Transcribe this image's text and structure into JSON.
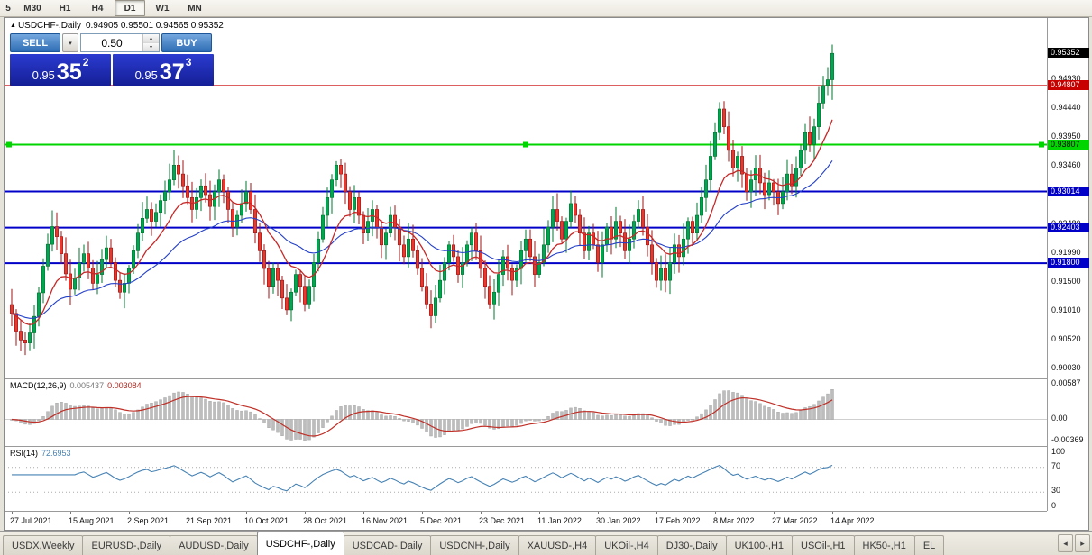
{
  "toolbar": {
    "timeframes": [
      {
        "label": "5"
      },
      {
        "label": "M30"
      },
      {
        "label": "H1"
      },
      {
        "label": "H4"
      },
      {
        "label": "D1",
        "active": true
      },
      {
        "label": "W1"
      },
      {
        "label": "MN"
      }
    ]
  },
  "trade_panel": {
    "sell_label": "SELL",
    "buy_label": "BUY",
    "volume": "0.50",
    "dropdown_icon": "▾",
    "spin_up_icon": "▴",
    "spin_down_icon": "▾",
    "sell_price": {
      "prefix": "0.95",
      "big": "35",
      "sup": "2"
    },
    "buy_price": {
      "prefix": "0.95",
      "big": "37",
      "sup": "3"
    }
  },
  "chart_data": {
    "type": "candlestick",
    "title": "USDCHF-,Daily",
    "title_ohlc": "0.94905 0.95501 0.94565 0.95352",
    "marker": "▲",
    "last_ohlc": {
      "open": 0.94905,
      "high": 0.95501,
      "low": 0.94565,
      "close": 0.95352
    },
    "first_open": 0.911,
    "price_range": [
      0.8985,
      0.9595
    ],
    "closes": [
      0.9095,
      0.9065,
      0.905,
      0.9045,
      0.9062,
      0.909,
      0.913,
      0.9175,
      0.9212,
      0.9242,
      0.9225,
      0.9196,
      0.9162,
      0.9136,
      0.9155,
      0.918,
      0.9196,
      0.9172,
      0.9146,
      0.9161,
      0.9186,
      0.9206,
      0.9181,
      0.9151,
      0.9131,
      0.9146,
      0.9171,
      0.9201,
      0.9231,
      0.9256,
      0.9271,
      0.9251,
      0.9266,
      0.9286,
      0.9301,
      0.9321,
      0.9346,
      0.9331,
      0.9311,
      0.9291,
      0.9271,
      0.9291,
      0.9311,
      0.9296,
      0.9276,
      0.9301,
      0.9321,
      0.9301,
      0.9271,
      0.9241,
      0.9261,
      0.9281,
      0.9301,
      0.9271,
      0.9231,
      0.9201,
      0.9171,
      0.9141,
      0.9171,
      0.9151,
      0.9121,
      0.9101,
      0.9131,
      0.9161,
      0.9141,
      0.9111,
      0.9141,
      0.9181,
      0.9221,
      0.9261,
      0.9291,
      0.9321,
      0.9346,
      0.9331,
      0.9301,
      0.9271,
      0.9291,
      0.9261,
      0.9231,
      0.9251,
      0.9271,
      0.9241,
      0.9211,
      0.9231,
      0.9261,
      0.9241,
      0.9211,
      0.9191,
      0.9221,
      0.9201,
      0.9171,
      0.9141,
      0.9111,
      0.9091,
      0.9121,
      0.9151,
      0.9181,
      0.9211,
      0.9191,
      0.9161,
      0.9181,
      0.9211,
      0.9231,
      0.9201,
      0.9171,
      0.9141,
      0.9111,
      0.9131,
      0.9161,
      0.9191,
      0.9171,
      0.9151,
      0.9171,
      0.9201,
      0.9221,
      0.9191,
      0.9161,
      0.9181,
      0.9211,
      0.9241,
      0.9271,
      0.9251,
      0.9221,
      0.9251,
      0.9281,
      0.9261,
      0.9231,
      0.9201,
      0.9231,
      0.9211,
      0.9181,
      0.9211,
      0.9241,
      0.9221,
      0.9251,
      0.9231,
      0.9201,
      0.9221,
      0.9251,
      0.9271,
      0.9241,
      0.9211,
      0.9181,
      0.9151,
      0.9171,
      0.9151,
      0.9181,
      0.9211,
      0.9191,
      0.9221,
      0.9251,
      0.9231,
      0.9261,
      0.9291,
      0.9321,
      0.9361,
      0.9401,
      0.9441,
      0.9411,
      0.9371,
      0.9341,
      0.9361,
      0.9331,
      0.9301,
      0.9321,
      0.9341,
      0.9316,
      0.9296,
      0.9316,
      0.9301,
      0.9281,
      0.9301,
      0.9331,
      0.9311,
      0.9341,
      0.9371,
      0.9401,
      0.9381,
      0.9411,
      0.9451,
      0.9481,
      0.94905,
      0.95352
    ],
    "x_labels": [
      "27 Jul 2021",
      "15 Aug 2021",
      "2 Sep 2021",
      "21 Sep 2021",
      "10 Oct 2021",
      "28 Oct 2021",
      "16 Nov 2021",
      "5 Dec 2021",
      "23 Dec 2021",
      "11 Jan 2022",
      "30 Jan 2022",
      "17 Feb 2022",
      "8 Mar 2022",
      "27 Mar 2022",
      "14 Apr 2022"
    ],
    "x_label_indices": [
      0,
      13,
      26,
      39,
      52,
      65,
      78,
      91,
      104,
      117,
      130,
      143,
      156,
      169,
      182
    ],
    "levels": [
      {
        "price": 0.94807,
        "label": "0.94807",
        "color": "#C80000",
        "width": 1.2,
        "text": "#fff"
      },
      {
        "price": 0.93807,
        "label": "0.93807",
        "color": "#00D500",
        "width": 2,
        "text": "#000",
        "handles": true
      },
      {
        "price": 0.93014,
        "label": "0.93014",
        "color": "#0000C8",
        "width": 2,
        "text": "#fff"
      },
      {
        "price": 0.92403,
        "label": "0.92403",
        "color": "#0000C8",
        "width": 2,
        "text": "#fff"
      },
      {
        "price": 0.918,
        "label": "0.91800",
        "color": "#0000C8",
        "width": 2,
        "text": "#fff"
      }
    ],
    "price_ticks": [
      "0.94930",
      "0.94440",
      "0.93950",
      "0.93460",
      "0.92970",
      "0.92480",
      "0.91990",
      "0.91500",
      "0.91010",
      "0.90520",
      "0.90030"
    ],
    "current_price_badge": "0.95352",
    "indicators": {
      "macd": {
        "name": "MACD(12,26,9)",
        "main_value": "0.005437",
        "signal_value": "0.003084",
        "fast": 12,
        "slow": 26,
        "signal": 9,
        "range": [
          -0.0045,
          0.0065
        ],
        "ticks": [
          {
            "label": "0.00587",
            "value": 0.00587
          },
          {
            "label": "0.00",
            "value": 0
          },
          {
            "label": "-0.00369",
            "value": -0.00369
          }
        ]
      },
      "rsi": {
        "name": "RSI(14)",
        "value": "72.6953",
        "period": 14,
        "levels": [
          70,
          30
        ],
        "ticks": [
          {
            "label": "100",
            "value": 100
          },
          {
            "label": "70",
            "value": 70
          },
          {
            "label": "30",
            "value": 30
          },
          {
            "label": "0",
            "value": 0
          }
        ]
      },
      "ma_fast_period": 12,
      "ma_slow_period": 34
    },
    "colors": {
      "up": "#00A651",
      "up_stroke": "#00772F",
      "down": "#E8392F",
      "down_stroke": "#A31212",
      "ma_fast": "#C62828",
      "ma_slow": "#2440C8",
      "macd_hist": "#BDBDBD",
      "macd_hist_stroke": "#9E9E9E",
      "macd_signal": "#C03028",
      "rsi_line": "#4682B4"
    }
  },
  "tabs": {
    "items": [
      {
        "label": "USDX,Weekly"
      },
      {
        "label": "EURUSD-,Daily"
      },
      {
        "label": "AUDUSD-,Daily"
      },
      {
        "label": "USDCHF-,Daily",
        "active": true
      },
      {
        "label": "USDCAD-,Daily"
      },
      {
        "label": "USDCNH-,Daily"
      },
      {
        "label": "XAUUSD-,H4"
      },
      {
        "label": "UKOil-,H4"
      },
      {
        "label": "DJ30-,Daily"
      },
      {
        "label": "UK100-,H1"
      },
      {
        "label": "USOil-,H1"
      },
      {
        "label": "HK50-,H1"
      },
      {
        "label": "EL"
      }
    ]
  },
  "tab_nav": {
    "left": "◂",
    "right": "▸"
  }
}
